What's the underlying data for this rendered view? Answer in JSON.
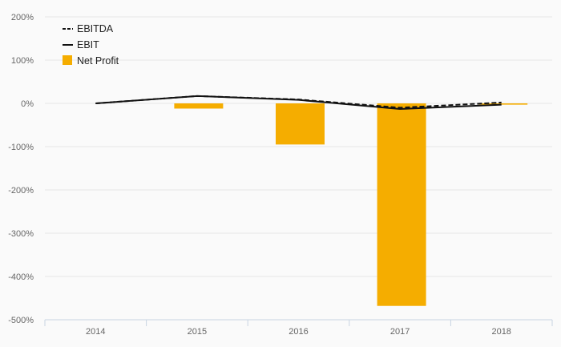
{
  "chart_data": {
    "type": "bar",
    "categories": [
      "2014",
      "2015",
      "2016",
      "2017",
      "2018"
    ],
    "series": [
      {
        "name": "Net Profit",
        "kind": "bar",
        "values": [
          0,
          -12,
          -95,
          -468,
          -3
        ]
      },
      {
        "name": "EBITDA",
        "kind": "line",
        "style": "dashed",
        "values": [
          0,
          17,
          9,
          -10,
          2
        ]
      },
      {
        "name": "EBIT",
        "kind": "line",
        "style": "solid",
        "values": [
          0,
          17,
          8,
          -13,
          -3
        ]
      }
    ],
    "y_ticks": [
      "200%",
      "100%",
      "0%",
      "-100%",
      "-200%",
      "-300%",
      "-400%",
      "-500%"
    ],
    "ylim": [
      -500,
      200
    ],
    "unit": "%",
    "grid": true,
    "legend_position": "top-left",
    "colors": {
      "bar": "#f5ad00",
      "line": "#111111",
      "grid": "#e6e6e6",
      "axis": "#c8d4e2"
    }
  }
}
